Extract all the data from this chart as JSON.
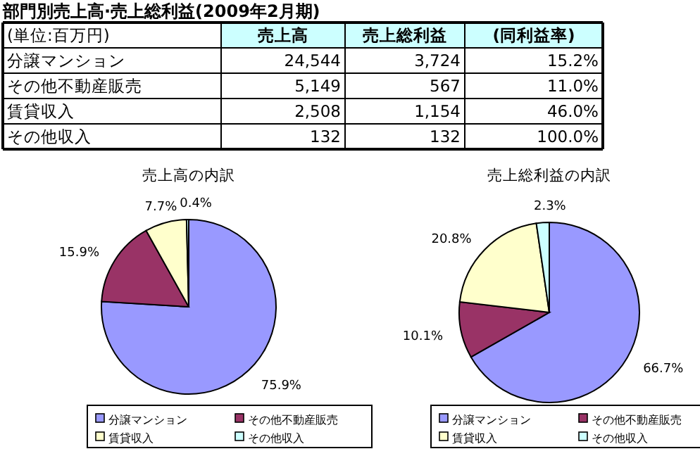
{
  "chart_data": [
    {
      "type": "other",
      "title": "部門別売上高·売上総利益(2009年2月期)",
      "annotations": [
        "(単位:百万円)"
      ],
      "categories": [
        "分譲マンション",
        "その他不動産販売",
        "賃貸収入",
        "その他収入"
      ],
      "series": [
        {
          "name": "売上高",
          "values": [
            24544,
            5149,
            2508,
            132
          ],
          "value_labels": [
            "24,544",
            "5,149",
            "2,508",
            "132"
          ]
        },
        {
          "name": "売上総利益",
          "values": [
            3724,
            567,
            1154,
            132
          ],
          "value_labels": [
            "3,724",
            "567",
            "1,154",
            "132"
          ]
        },
        {
          "name": "(同利益率)",
          "values": [
            15.2,
            11.0,
            46.0,
            100.0
          ],
          "value_labels": [
            "15.2%",
            "11.0%",
            "46.0%",
            "100.0%"
          ]
        }
      ]
    },
    {
      "type": "pie",
      "title": "売上高の内訳",
      "categories": [
        "分譲マンション",
        "その他不動産販売",
        "賃貸収入",
        "その他収入"
      ],
      "values": [
        75.9,
        15.9,
        7.7,
        0.4
      ],
      "value_labels": [
        "75.9%",
        "15.9%",
        "7.7%",
        "0.4%"
      ],
      "colors": [
        "#9999ff",
        "#993366",
        "#ffffcc",
        "#ccffff"
      ],
      "legend": "bottom"
    },
    {
      "type": "pie",
      "title": "売上総利益の内訳",
      "categories": [
        "分譲マンション",
        "その他不動産販売",
        "賃貸収入",
        "その他収入"
      ],
      "values": [
        66.7,
        10.1,
        20.8,
        2.3
      ],
      "value_labels": [
        "66.7%",
        "10.1%",
        "20.8%",
        "2.3%"
      ],
      "colors": [
        "#9999ff",
        "#993366",
        "#ffffcc",
        "#ccffff"
      ],
      "legend": "bottom"
    }
  ]
}
